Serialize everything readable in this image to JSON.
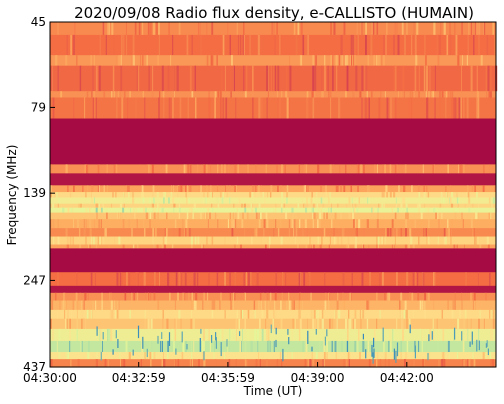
{
  "chart_data": {
    "type": "heatmap",
    "title": "2020/09/08  Radio flux density, e-CALLISTO (HUMAIN)",
    "xlabel": "Time (UT)",
    "ylabel": "Frequency (MHz)",
    "x_ticks": [
      "04:30:00",
      "04:32:59",
      "04:35:59",
      "04:39:00",
      "04:42:00"
    ],
    "x_tick_seconds": [
      0,
      179,
      359,
      540,
      720
    ],
    "x_range_seconds": [
      0,
      900
    ],
    "y_ticks": [
      "45",
      "79",
      "139",
      "247",
      "437"
    ],
    "y_tick_values": [
      45,
      79,
      139,
      247,
      437
    ],
    "y_range": [
      45,
      437
    ],
    "y_scale": "log",
    "y_inverted": true,
    "colormap": "Spectral_r",
    "colors": {
      "low": "#9e0142",
      "mid_low": "#d53e4f",
      "mid": "#f46d43",
      "mid_high": "#fdae61",
      "high": "#fee08b",
      "very_high": "#e6f598",
      "peak": "#abdda4",
      "max": "#3288bd"
    },
    "bands": [
      {
        "f_from": 45,
        "f_to": 49,
        "level": 0.38
      },
      {
        "f_from": 49,
        "f_to": 56,
        "level": 0.3
      },
      {
        "f_from": 56,
        "f_to": 60,
        "level": 0.42
      },
      {
        "f_from": 60,
        "f_to": 71,
        "level": 0.28
      },
      {
        "f_from": 71,
        "f_to": 74,
        "level": 0.4
      },
      {
        "f_from": 74,
        "f_to": 85,
        "level": 0.32
      },
      {
        "f_from": 85,
        "f_to": 115,
        "level": 0.02
      },
      {
        "f_from": 115,
        "f_to": 122,
        "level": 0.4
      },
      {
        "f_from": 122,
        "f_to": 132,
        "level": 0.04
      },
      {
        "f_from": 132,
        "f_to": 138,
        "level": 0.45
      },
      {
        "f_from": 138,
        "f_to": 143,
        "level": 0.62
      },
      {
        "f_from": 143,
        "f_to": 149,
        "level": 0.72
      },
      {
        "f_from": 149,
        "f_to": 153,
        "level": 0.6
      },
      {
        "f_from": 153,
        "f_to": 158,
        "level": 0.78
      },
      {
        "f_from": 158,
        "f_to": 165,
        "level": 0.55
      },
      {
        "f_from": 165,
        "f_to": 175,
        "level": 0.48
      },
      {
        "f_from": 175,
        "f_to": 185,
        "level": 0.38
      },
      {
        "f_from": 185,
        "f_to": 195,
        "level": 0.6
      },
      {
        "f_from": 195,
        "f_to": 200,
        "level": 0.45
      },
      {
        "f_from": 200,
        "f_to": 234,
        "level": 0.02
      },
      {
        "f_from": 234,
        "f_to": 256,
        "level": 0.3
      },
      {
        "f_from": 256,
        "f_to": 268,
        "level": 0.04
      },
      {
        "f_from": 268,
        "f_to": 282,
        "level": 0.4
      },
      {
        "f_from": 282,
        "f_to": 300,
        "level": 0.5
      },
      {
        "f_from": 300,
        "f_to": 318,
        "level": 0.62
      },
      {
        "f_from": 318,
        "f_to": 340,
        "level": 0.55
      },
      {
        "f_from": 340,
        "f_to": 368,
        "level": 0.74
      },
      {
        "f_from": 368,
        "f_to": 396,
        "level": 0.86
      },
      {
        "f_from": 396,
        "f_to": 415,
        "level": 0.66
      },
      {
        "f_from": 415,
        "f_to": 437,
        "level": 0.36
      }
    ]
  }
}
